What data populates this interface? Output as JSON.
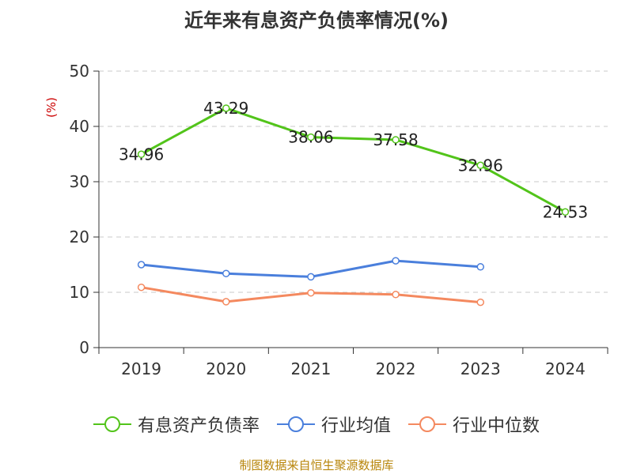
{
  "chart_data": {
    "type": "line",
    "title": "近年来有息资产负债率情况(%)",
    "ylabel": "(%)",
    "xlabel": "",
    "ylim": [
      0,
      50
    ],
    "yticks": [
      0,
      10,
      20,
      30,
      40,
      50
    ],
    "categories": [
      "2019",
      "2020",
      "2021",
      "2022",
      "2023",
      "2024"
    ],
    "grid": true,
    "legend_position": "bottom",
    "series": [
      {
        "name": "有息资产负债率",
        "color": "#52c41a",
        "values": [
          34.96,
          43.29,
          38.06,
          37.58,
          32.96,
          24.53
        ],
        "labels": [
          "34.96",
          "43.29",
          "38.06",
          "37.58",
          "32.96",
          "24.53"
        ]
      },
      {
        "name": "行业均值",
        "color": "#4a7fdc",
        "values": [
          15.0,
          13.4,
          12.8,
          15.7,
          14.6,
          null
        ]
      },
      {
        "name": "行业中位数",
        "color": "#f4895f",
        "values": [
          10.9,
          8.3,
          9.9,
          9.6,
          8.2,
          null
        ]
      }
    ]
  },
  "footer": {
    "source": "制图数据来自恒生聚源数据库"
  }
}
